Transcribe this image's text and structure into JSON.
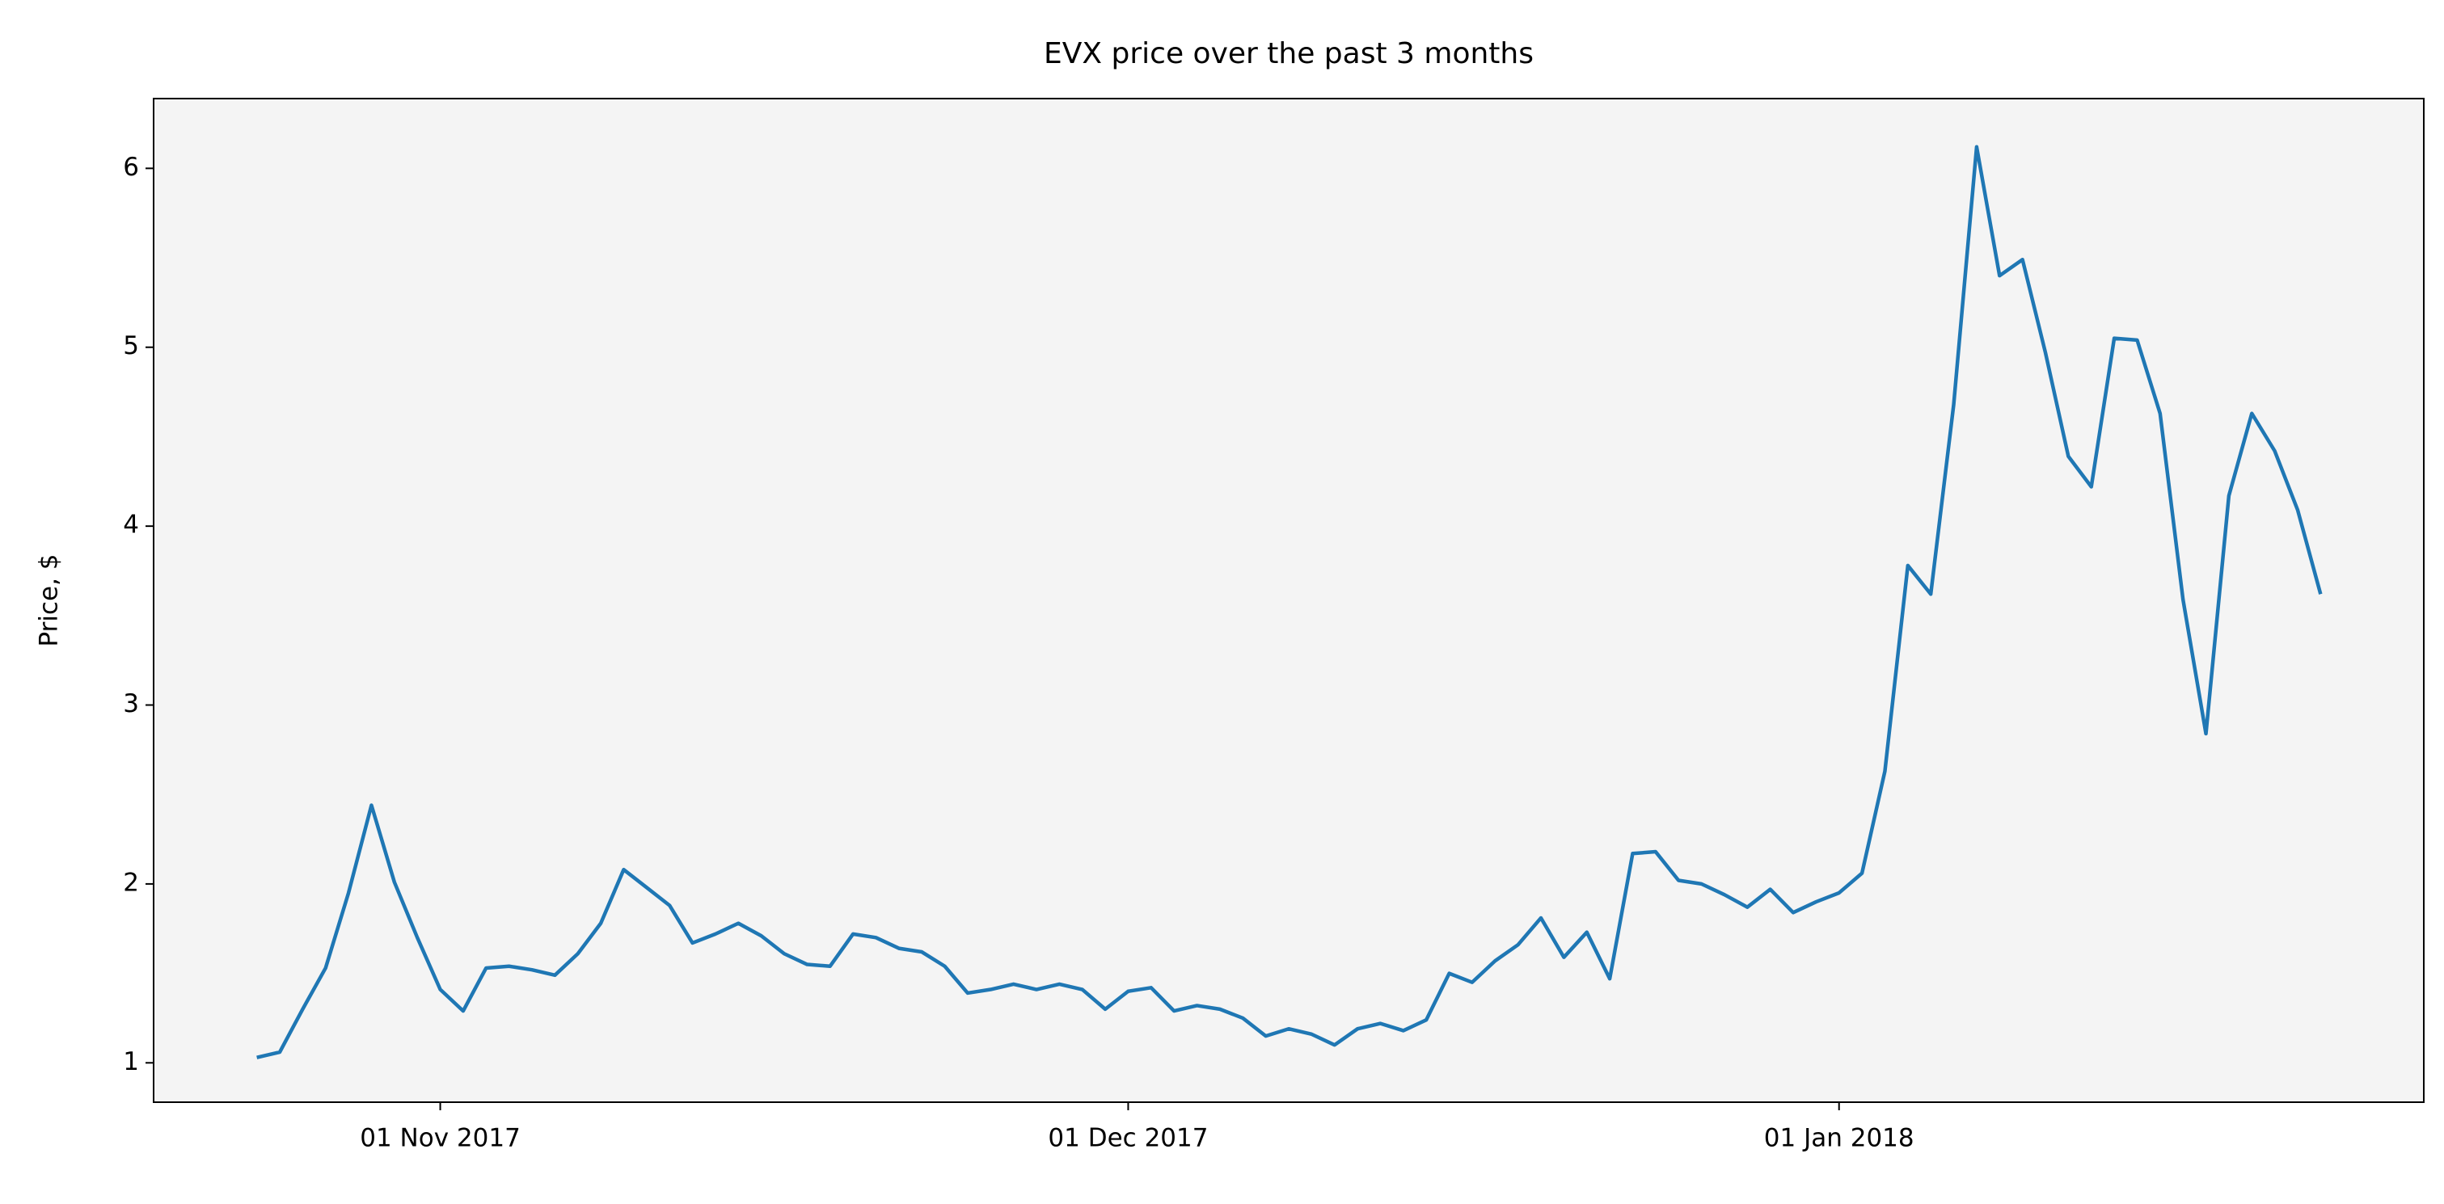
{
  "chart_data": {
    "type": "line",
    "title": "EVX price over the past 3 months",
    "ylabel": "Price, $",
    "x": [
      "2017-10-24",
      "2017-10-25",
      "2017-10-26",
      "2017-10-27",
      "2017-10-28",
      "2017-10-29",
      "2017-10-30",
      "2017-10-31",
      "2017-11-01",
      "2017-11-02",
      "2017-11-03",
      "2017-11-04",
      "2017-11-05",
      "2017-11-06",
      "2017-11-07",
      "2017-11-08",
      "2017-11-09",
      "2017-11-10",
      "2017-11-11",
      "2017-11-12",
      "2017-11-13",
      "2017-11-14",
      "2017-11-15",
      "2017-11-16",
      "2017-11-17",
      "2017-11-18",
      "2017-11-19",
      "2017-11-20",
      "2017-11-21",
      "2017-11-22",
      "2017-11-23",
      "2017-11-24",
      "2017-11-25",
      "2017-11-26",
      "2017-11-27",
      "2017-11-28",
      "2017-11-29",
      "2017-11-30",
      "2017-12-01",
      "2017-12-02",
      "2017-12-03",
      "2017-12-04",
      "2017-12-05",
      "2017-12-06",
      "2017-12-07",
      "2017-12-08",
      "2017-12-09",
      "2017-12-10",
      "2017-12-11",
      "2017-12-12",
      "2017-12-13",
      "2017-12-14",
      "2017-12-15",
      "2017-12-16",
      "2017-12-17",
      "2017-12-18",
      "2017-12-19",
      "2017-12-20",
      "2017-12-21",
      "2017-12-22",
      "2017-12-23",
      "2017-12-24",
      "2017-12-25",
      "2017-12-26",
      "2017-12-27",
      "2017-12-28",
      "2017-12-29",
      "2017-12-30",
      "2017-12-31",
      "2018-01-01",
      "2018-01-02",
      "2018-01-03",
      "2018-01-04",
      "2018-01-05",
      "2018-01-06",
      "2018-01-07",
      "2018-01-08",
      "2018-01-09",
      "2018-01-10",
      "2018-01-11",
      "2018-01-12",
      "2018-01-13",
      "2018-01-14",
      "2018-01-15",
      "2018-01-16",
      "2018-01-17",
      "2018-01-18",
      "2018-01-19",
      "2018-01-20",
      "2018-01-21",
      "2018-01-22"
    ],
    "values": [
      1.03,
      1.06,
      1.3,
      1.53,
      1.95,
      2.44,
      2.01,
      1.7,
      1.41,
      1.29,
      1.53,
      1.54,
      1.52,
      1.49,
      1.61,
      1.78,
      2.08,
      1.98,
      1.88,
      1.67,
      1.72,
      1.78,
      1.71,
      1.61,
      1.55,
      1.54,
      1.72,
      1.7,
      1.64,
      1.62,
      1.54,
      1.39,
      1.41,
      1.44,
      1.41,
      1.44,
      1.41,
      1.3,
      1.4,
      1.42,
      1.29,
      1.32,
      1.3,
      1.25,
      1.15,
      1.19,
      1.16,
      1.1,
      1.19,
      1.22,
      1.18,
      1.24,
      1.5,
      1.45,
      1.57,
      1.66,
      1.81,
      1.59,
      1.73,
      1.47,
      2.17,
      2.18,
      2.02,
      2.0,
      1.94,
      1.87,
      1.97,
      1.84,
      1.9,
      1.95,
      2.06,
      2.63,
      3.78,
      3.62,
      4.68,
      6.12,
      5.4,
      5.49,
      4.97,
      4.39,
      4.22,
      5.05,
      5.04,
      4.63,
      3.59,
      2.84,
      4.17,
      4.63,
      4.42,
      4.09,
      3.62
    ],
    "color": "#1f77b4",
    "axes_facecolor": "#f4f4f4",
    "xlim": [
      "2017-10-19T12:00:00Z",
      "2018-01-26T12:00:00Z"
    ],
    "xticks": [
      {
        "value": "2017-11-01",
        "label": "01 Nov 2017"
      },
      {
        "value": "2017-12-01",
        "label": "01 Dec 2017"
      },
      {
        "value": "2018-01-01",
        "label": "01 Jan 2018"
      }
    ],
    "ylim": [
      0.78,
      6.39
    ],
    "yticks": [
      1,
      2,
      3,
      4,
      5,
      6
    ],
    "grid": false
  }
}
